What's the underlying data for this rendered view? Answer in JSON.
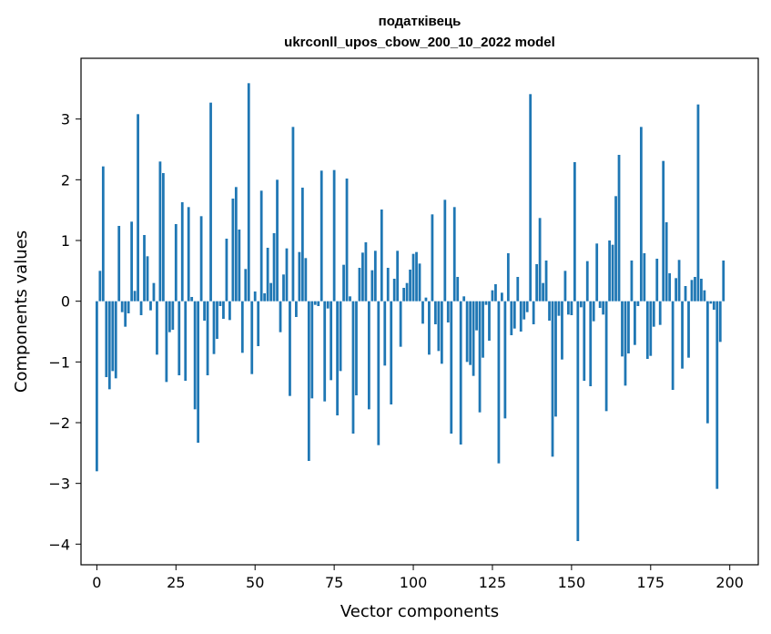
{
  "chart_data": {
    "type": "bar",
    "title": "податківець",
    "subtitle": "ukrconll_upos_cbow_200_10_2022 model",
    "xlabel": "Vector components",
    "ylabel": "Components values",
    "xlim": [
      -5,
      209
    ],
    "ylim": [
      -4.34,
      4.0
    ],
    "xticks": [
      0,
      25,
      50,
      75,
      100,
      125,
      150,
      175,
      200
    ],
    "yticks": [
      -4,
      -3,
      -2,
      -1,
      0,
      1,
      2,
      3
    ],
    "xtick_labels": [
      "0",
      "25",
      "50",
      "75",
      "100",
      "125",
      "150",
      "175",
      "200"
    ],
    "ytick_labels": [
      "−4",
      "−3",
      "−2",
      "−1",
      "0",
      "1",
      "2",
      "3"
    ],
    "grid": false,
    "bar_color": "#1f77b4",
    "values": [
      -2.8,
      0.5,
      2.22,
      -1.25,
      -1.45,
      -1.15,
      -1.27,
      1.24,
      -0.18,
      -0.42,
      -0.2,
      1.31,
      0.17,
      3.08,
      -0.23,
      1.09,
      0.74,
      -0.15,
      0.3,
      -0.88,
      2.3,
      2.11,
      -1.33,
      -0.51,
      -0.47,
      1.27,
      -1.22,
      1.63,
      -1.31,
      1.55,
      0.07,
      -1.78,
      -2.33,
      1.4,
      -0.32,
      -1.22,
      3.27,
      -0.87,
      -0.62,
      -0.08,
      -0.29,
      1.03,
      -0.31,
      1.69,
      1.88,
      1.18,
      -0.85,
      0.53,
      3.59,
      -1.2,
      0.16,
      -0.74,
      1.82,
      0.13,
      0.88,
      0.3,
      1.12,
      2.0,
      -0.51,
      0.44,
      0.87,
      -1.56,
      2.87,
      -0.26,
      0.81,
      1.87,
      0.71,
      -2.63,
      -1.6,
      -0.06,
      -0.08,
      2.15,
      -1.65,
      -0.12,
      -1.3,
      2.16,
      -1.88,
      -1.15,
      0.6,
      2.02,
      0.08,
      -2.18,
      -1.55,
      0.55,
      0.8,
      0.97,
      -1.78,
      0.51,
      0.83,
      -2.37,
      1.51,
      -1.06,
      0.55,
      -1.7,
      0.37,
      0.83,
      -0.75,
      0.22,
      0.3,
      0.52,
      0.78,
      0.81,
      0.62,
      -0.37,
      0.06,
      -0.88,
      1.43,
      -0.38,
      -0.82,
      -1.03,
      1.67,
      -0.35,
      -2.18,
      1.55,
      0.4,
      -2.36,
      0.08,
      -1.0,
      -1.05,
      -1.23,
      -0.48,
      -1.83,
      -0.93,
      -0.06,
      -0.65,
      0.18,
      0.28,
      -2.67,
      0.14,
      -1.93,
      0.79,
      -0.56,
      -0.45,
      0.4,
      -0.5,
      -0.3,
      -0.18,
      3.41,
      -0.38,
      0.61,
      1.37,
      0.3,
      0.67,
      -0.32,
      -2.56,
      -1.9,
      -0.24,
      -0.96,
      0.5,
      -0.22,
      -0.23,
      2.29,
      -3.95,
      -0.1,
      -1.31,
      0.66,
      -1.4,
      -0.33,
      0.95,
      -0.11,
      -0.22,
      -1.81,
      1.0,
      0.93,
      1.73,
      2.41,
      -0.91,
      -1.39,
      -0.86,
      0.67,
      -0.72,
      -0.08,
      2.87,
      0.79,
      -0.95,
      -0.9,
      -0.42,
      0.7,
      -0.39,
      2.31,
      1.3,
      0.46,
      -1.46,
      0.38,
      0.68,
      -1.11,
      0.25,
      -0.93,
      0.35,
      0.4,
      3.24,
      0.37,
      0.18,
      -2.01,
      -0.04,
      -0.14,
      -3.09,
      -0.67,
      0.67
    ]
  }
}
